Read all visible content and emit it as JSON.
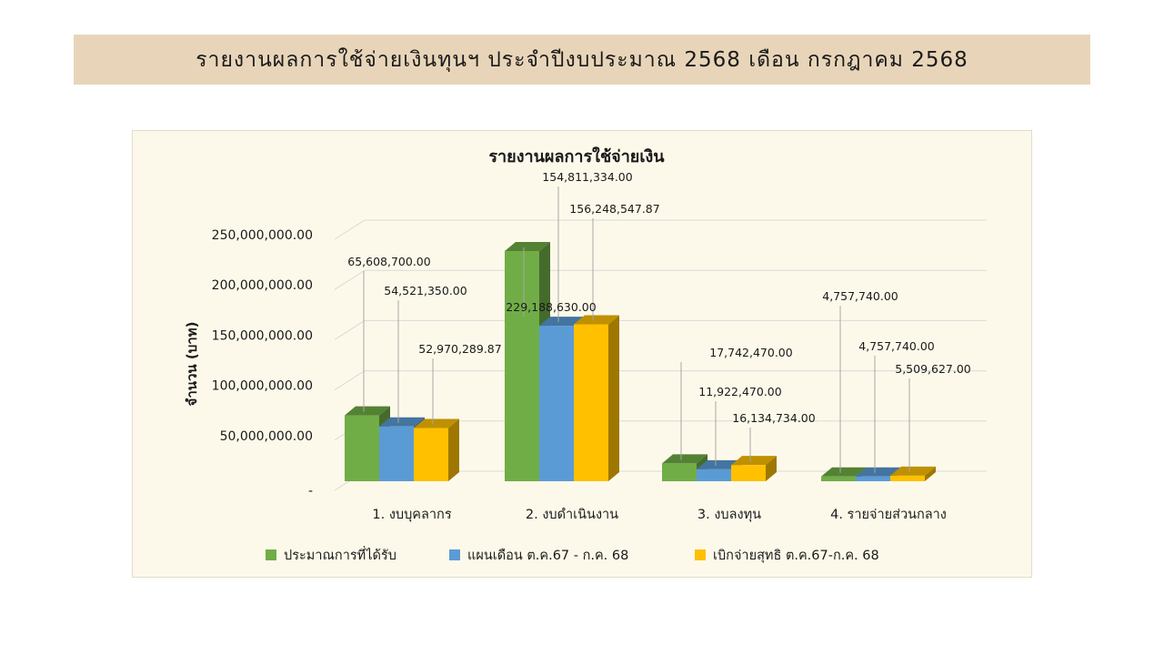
{
  "header": {
    "title": "รายงานผลการใช้จ่ายเงินทุนฯ  ประจำปีงบประมาณ  2568  เดือน  กรกฎาคม  2568"
  },
  "chart_data": {
    "type": "bar",
    "title": "รายงานผลการใช้จ่ายเงิน",
    "ylabel": "จำนวน (บาท)",
    "xlabel": "",
    "ylim": [
      0,
      250000000
    ],
    "yticks": [
      0,
      50000000,
      100000000,
      150000000,
      200000000,
      250000000
    ],
    "ytick_labels": [
      "-",
      "50,000,000.00",
      "100,000,000.00",
      "150,000,000.00",
      "200,000,000.00",
      "250,000,000.00"
    ],
    "categories": [
      "1. งบบุคลากร",
      "2. งบดำเนินงาน",
      "3. งบลงทุน",
      "4. รายจ่ายส่วนกลาง"
    ],
    "series": [
      {
        "name": "ประมาณการที่ได้รับ",
        "color": "#70ad47",
        "values": [
          65608700.0,
          229188630.0,
          17742470.0,
          4757740.0
        ],
        "labels": [
          "65,608,700.00",
          "229,188,630.00",
          "17,742,470.00",
          "4,757,740.00"
        ]
      },
      {
        "name": "แผนเดือน ต.ค.67 - ก.ค. 68",
        "color": "#5b9bd5",
        "values": [
          54521350.0,
          154811334.0,
          11922470.0,
          4757740.0
        ],
        "labels": [
          "54,521,350.00",
          "154,811,334.00",
          "11,922,470.00",
          "4,757,740.00"
        ]
      },
      {
        "name": "เบิกจ่ายสุทธิ ต.ค.67-ก.ค. 68",
        "color": "#ffc000",
        "values": [
          52970289.87,
          156248547.87,
          16134734.0,
          5509627.0
        ],
        "labels": [
          "52,970,289.87",
          "156,248,547.87",
          "16,134,734.00",
          "5,509,627.00"
        ]
      }
    ],
    "grid": true,
    "legend": "bottom",
    "style": "3d-clustered-column"
  }
}
